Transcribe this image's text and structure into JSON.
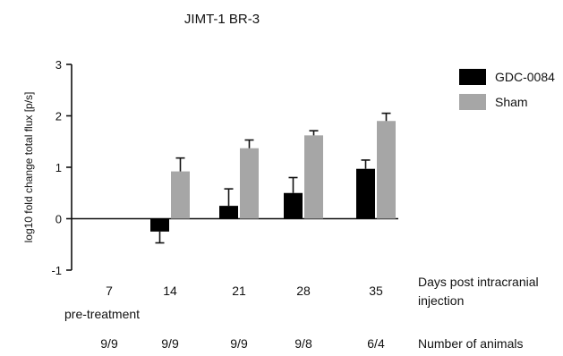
{
  "chart_data": {
    "type": "bar",
    "title": "JIMT-1 BR-3",
    "ylabel": "log10 fold change total flux [p/s]",
    "xlabel": "Days post intracranial injection",
    "ylim": [
      -1,
      3
    ],
    "yticks": [
      -1,
      0,
      1,
      2,
      3
    ],
    "categories": [
      "7",
      "14",
      "21",
      "28",
      "35"
    ],
    "series": [
      {
        "name": "GDC-0084",
        "color": "#000000",
        "values": [
          0,
          -0.25,
          0.25,
          0.5,
          0.97
        ],
        "errors": [
          0,
          0.22,
          0.33,
          0.3,
          0.17
        ]
      },
      {
        "name": "Sham",
        "color": "#a6a6a6",
        "values": [
          0,
          0.92,
          1.37,
          1.62,
          1.9
        ],
        "errors": [
          0,
          0.26,
          0.16,
          0.09,
          0.15
        ]
      }
    ],
    "legend_position": "top-right",
    "grid": false
  },
  "annotations": {
    "pretreatment_label": "pre-treatment",
    "xlabel_line1": "Days post intracranial",
    "xlabel_line2": "injection",
    "animals_label": "Number of animals",
    "animals_counts": [
      "9/9",
      "9/9",
      "9/9",
      "9/8",
      "6/4"
    ]
  }
}
